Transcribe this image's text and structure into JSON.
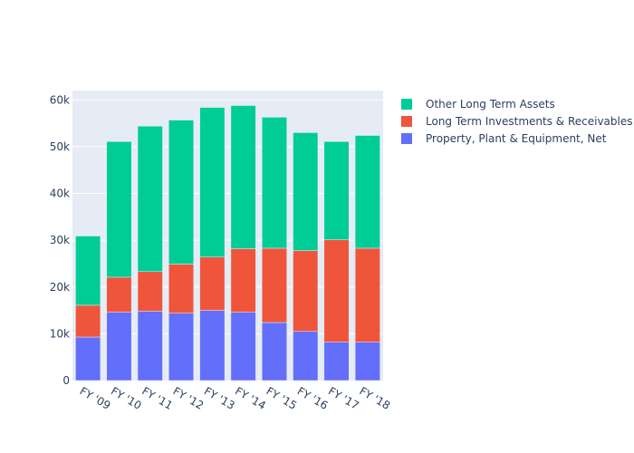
{
  "chart_data": {
    "type": "bar",
    "barmode": "stack",
    "title": "",
    "xlabel": "",
    "ylabel": "",
    "ylim": [
      0,
      62000
    ],
    "grid": true,
    "legend_position": "top-right",
    "categories": [
      "FY '09",
      "FY '10",
      "FY '11",
      "FY '12",
      "FY '13",
      "FY '14",
      "FY '15",
      "FY '16",
      "FY '17",
      "FY '18"
    ],
    "y_ticks": [
      0,
      10000,
      20000,
      30000,
      40000,
      50000,
      60000
    ],
    "y_tick_labels": [
      "0",
      "10k",
      "20k",
      "30k",
      "40k",
      "50k",
      "60k"
    ],
    "series": [
      {
        "name": "Property, Plant & Equipment, Net",
        "color": "#636efa",
        "values": [
          9300,
          14600,
          14800,
          14400,
          15000,
          14600,
          12400,
          10500,
          8200,
          8200
        ]
      },
      {
        "name": "Long Term Investments & Receivables",
        "color": "#ef553b",
        "values": [
          6800,
          7500,
          8500,
          10500,
          11400,
          13600,
          15900,
          17300,
          21900,
          20100
        ]
      },
      {
        "name": "Other Long Term Assets",
        "color": "#00cc96",
        "values": [
          14800,
          29000,
          31100,
          30800,
          32000,
          30600,
          28000,
          25200,
          21000,
          24100
        ]
      }
    ],
    "legend_order": [
      2,
      1,
      0
    ]
  }
}
